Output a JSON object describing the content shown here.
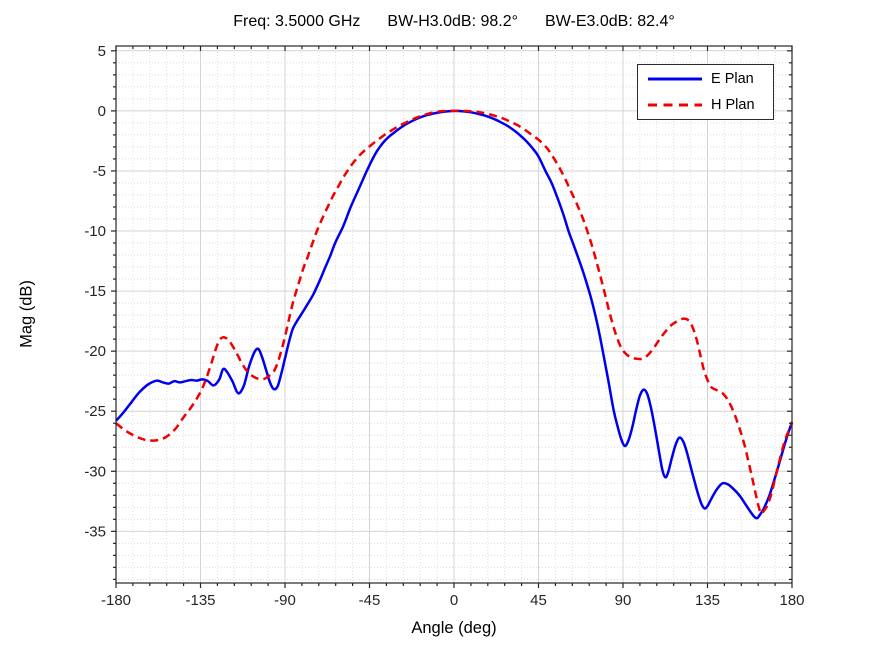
{
  "chart_data": {
    "type": "line",
    "title_parts": [
      "Freq: 3.5000 GHz",
      "BW-H3.0dB: 98.2°",
      "BW-E3.0dB: 82.4°"
    ],
    "xlabel": "Angle (deg)",
    "ylabel": "Mag (dB)",
    "xlim": [
      -180,
      180
    ],
    "ylim_display": [
      -39.3,
      5.4
    ],
    "grid": true,
    "minor_grid": true,
    "minor_x_step": 9,
    "minor_y_step": 1,
    "xticks": {
      "values": [
        -180,
        -135,
        -90,
        -45,
        0,
        45,
        90,
        135,
        180
      ],
      "labels": [
        "-180",
        "-135",
        "-90",
        "-45",
        "0",
        "45",
        "90",
        "135",
        "180"
      ]
    },
    "yticks": {
      "values": [
        5,
        0,
        -5,
        -10,
        -15,
        -20,
        -25,
        -30,
        -35
      ],
      "labels": [
        "5",
        "0",
        "-5",
        "-10",
        "-15",
        "-20",
        "-25",
        "-30",
        "-35"
      ]
    },
    "legend": {
      "position": "top-right",
      "entries": [
        "E Plan",
        "H Plan"
      ]
    },
    "series": [
      {
        "name": "E Plan",
        "color": "#0000F0",
        "style": "solid",
        "points": [
          [
            -180,
            -25.8
          ],
          [
            -176,
            -25.1
          ],
          [
            -172,
            -24.3
          ],
          [
            -168,
            -23.5
          ],
          [
            -164,
            -22.9
          ],
          [
            -161,
            -22.6
          ],
          [
            -158,
            -22.45
          ],
          [
            -155,
            -22.6
          ],
          [
            -152,
            -22.7
          ],
          [
            -149,
            -22.5
          ],
          [
            -146,
            -22.6
          ],
          [
            -143,
            -22.5
          ],
          [
            -140,
            -22.4
          ],
          [
            -137,
            -22.45
          ],
          [
            -134,
            -22.35
          ],
          [
            -131,
            -22.5
          ],
          [
            -128,
            -22.85
          ],
          [
            -125,
            -22.35
          ],
          [
            -123,
            -21.5
          ],
          [
            -121,
            -21.7
          ],
          [
            -118,
            -22.5
          ],
          [
            -115,
            -23.5
          ],
          [
            -112,
            -22.9
          ],
          [
            -109,
            -21.2
          ],
          [
            -106,
            -20.0
          ],
          [
            -104,
            -19.85
          ],
          [
            -102,
            -20.6
          ],
          [
            -100,
            -21.6
          ],
          [
            -98,
            -22.6
          ],
          [
            -96,
            -23.15
          ],
          [
            -94,
            -22.95
          ],
          [
            -92,
            -21.9
          ],
          [
            -90,
            -20.6
          ],
          [
            -88,
            -19.3
          ],
          [
            -86,
            -18.2
          ],
          [
            -84,
            -17.6
          ],
          [
            -82,
            -17.1
          ],
          [
            -80,
            -16.6
          ],
          [
            -78,
            -16.1
          ],
          [
            -75,
            -15.3
          ],
          [
            -72,
            -14.3
          ],
          [
            -69,
            -13.2
          ],
          [
            -66,
            -12.1
          ],
          [
            -63,
            -10.9
          ],
          [
            -59,
            -9.6
          ],
          [
            -55,
            -8.0
          ],
          [
            -51,
            -6.6
          ],
          [
            -47,
            -5.2
          ],
          [
            -44,
            -4.2
          ],
          [
            -41,
            -3.35
          ],
          [
            -38,
            -2.7
          ],
          [
            -35,
            -2.2
          ],
          [
            -31,
            -1.7
          ],
          [
            -27,
            -1.25
          ],
          [
            -23,
            -0.9
          ],
          [
            -19,
            -0.6
          ],
          [
            -15,
            -0.38
          ],
          [
            -11,
            -0.22
          ],
          [
            -7,
            -0.1
          ],
          [
            -3,
            -0.03
          ],
          [
            1,
            0
          ],
          [
            5,
            -0.04
          ],
          [
            9,
            -0.12
          ],
          [
            13,
            -0.25
          ],
          [
            17,
            -0.42
          ],
          [
            21,
            -0.65
          ],
          [
            25,
            -0.95
          ],
          [
            29,
            -1.3
          ],
          [
            33,
            -1.75
          ],
          [
            36,
            -2.15
          ],
          [
            39,
            -2.6
          ],
          [
            42,
            -3.15
          ],
          [
            45,
            -3.8
          ],
          [
            49,
            -5.1
          ],
          [
            52,
            -6.0
          ],
          [
            55,
            -7.2
          ],
          [
            58,
            -8.5
          ],
          [
            61,
            -10.0
          ],
          [
            64,
            -11.3
          ],
          [
            67,
            -12.6
          ],
          [
            70,
            -14.0
          ],
          [
            73,
            -15.6
          ],
          [
            76,
            -17.5
          ],
          [
            79,
            -19.8
          ],
          [
            82,
            -22.3
          ],
          [
            85,
            -24.9
          ],
          [
            87,
            -26.2
          ],
          [
            89,
            -27.3
          ],
          [
            91,
            -27.9
          ],
          [
            93,
            -27.4
          ],
          [
            95,
            -26.3
          ],
          [
            97,
            -24.9
          ],
          [
            99,
            -23.7
          ],
          [
            101,
            -23.2
          ],
          [
            103,
            -23.6
          ],
          [
            105,
            -24.8
          ],
          [
            107,
            -26.4
          ],
          [
            109,
            -28.2
          ],
          [
            111,
            -29.9
          ],
          [
            112.5,
            -30.5
          ],
          [
            114,
            -30.1
          ],
          [
            116,
            -28.9
          ],
          [
            118,
            -27.8
          ],
          [
            120,
            -27.2
          ],
          [
            122,
            -27.5
          ],
          [
            124,
            -28.4
          ],
          [
            127,
            -30.2
          ],
          [
            130,
            -31.9
          ],
          [
            132,
            -32.8
          ],
          [
            133.5,
            -33.1
          ],
          [
            135,
            -32.9
          ],
          [
            137,
            -32.3
          ],
          [
            140,
            -31.5
          ],
          [
            143,
            -31.0
          ],
          [
            146,
            -31.1
          ],
          [
            149,
            -31.5
          ],
          [
            152,
            -32.0
          ],
          [
            155,
            -32.7
          ],
          [
            158,
            -33.4
          ],
          [
            160,
            -33.8
          ],
          [
            161.5,
            -33.9
          ],
          [
            163,
            -33.6
          ],
          [
            165,
            -33.1
          ],
          [
            168,
            -32.0
          ],
          [
            171,
            -30.5
          ],
          [
            174,
            -28.9
          ],
          [
            177,
            -27.3
          ],
          [
            180,
            -25.9
          ]
        ]
      },
      {
        "name": "H Plan",
        "color": "#F00000",
        "style": "dashed",
        "points": [
          [
            -180,
            -26.0
          ],
          [
            -176,
            -26.5
          ],
          [
            -172,
            -26.9
          ],
          [
            -168,
            -27.2
          ],
          [
            -164,
            -27.4
          ],
          [
            -160,
            -27.45
          ],
          [
            -156,
            -27.35
          ],
          [
            -152,
            -27.0
          ],
          [
            -148,
            -26.4
          ],
          [
            -144,
            -25.5
          ],
          [
            -141,
            -24.9
          ],
          [
            -138,
            -24.2
          ],
          [
            -135,
            -23.4
          ],
          [
            -132,
            -22.3
          ],
          [
            -129,
            -20.9
          ],
          [
            -127,
            -19.9
          ],
          [
            -125,
            -19.1
          ],
          [
            -123,
            -18.85
          ],
          [
            -121,
            -18.95
          ],
          [
            -119,
            -19.3
          ],
          [
            -116,
            -20.1
          ],
          [
            -113,
            -21.0
          ],
          [
            -110,
            -21.7
          ],
          [
            -107,
            -22.1
          ],
          [
            -104,
            -22.3
          ],
          [
            -101,
            -22.3
          ],
          [
            -98,
            -22.0
          ],
          [
            -96,
            -21.7
          ],
          [
            -94,
            -21.0
          ],
          [
            -92,
            -20.0
          ],
          [
            -90,
            -18.8
          ],
          [
            -88,
            -17.4
          ],
          [
            -86,
            -16.1
          ],
          [
            -84,
            -15.0
          ],
          [
            -82,
            -14.0
          ],
          [
            -80,
            -13.0
          ],
          [
            -78,
            -12.2
          ],
          [
            -76,
            -11.3
          ],
          [
            -73,
            -10.0
          ],
          [
            -70,
            -8.9
          ],
          [
            -67,
            -7.9
          ],
          [
            -64,
            -6.95
          ],
          [
            -61,
            -6.1
          ],
          [
            -58,
            -5.3
          ],
          [
            -55,
            -4.6
          ],
          [
            -52,
            -4.0
          ],
          [
            -49,
            -3.5
          ],
          [
            -46,
            -3.1
          ],
          [
            -43,
            -2.7
          ],
          [
            -40,
            -2.35
          ],
          [
            -37,
            -2.0
          ],
          [
            -34,
            -1.7
          ],
          [
            -30,
            -1.32
          ],
          [
            -26,
            -1.0
          ],
          [
            -22,
            -0.7
          ],
          [
            -18,
            -0.45
          ],
          [
            -14,
            -0.25
          ],
          [
            -10,
            -0.1
          ],
          [
            -6,
            -0.02
          ],
          [
            -2,
            0
          ],
          [
            2,
            0
          ],
          [
            6,
            -0.01
          ],
          [
            10,
            -0.05
          ],
          [
            14,
            -0.12
          ],
          [
            18,
            -0.25
          ],
          [
            22,
            -0.42
          ],
          [
            26,
            -0.63
          ],
          [
            30,
            -0.9
          ],
          [
            34,
            -1.2
          ],
          [
            38,
            -1.6
          ],
          [
            41,
            -1.95
          ],
          [
            45,
            -2.4
          ],
          [
            48,
            -2.85
          ],
          [
            50,
            -3.2
          ],
          [
            53,
            -3.9
          ],
          [
            56,
            -4.7
          ],
          [
            59,
            -5.6
          ],
          [
            62,
            -6.6
          ],
          [
            65,
            -7.6
          ],
          [
            68,
            -8.7
          ],
          [
            71,
            -10.0
          ],
          [
            74,
            -11.5
          ],
          [
            77,
            -13.2
          ],
          [
            80,
            -15.0
          ],
          [
            83,
            -16.9
          ],
          [
            86,
            -18.5
          ],
          [
            89,
            -19.7
          ],
          [
            92,
            -20.3
          ],
          [
            95,
            -20.55
          ],
          [
            98,
            -20.65
          ],
          [
            101,
            -20.6
          ],
          [
            104,
            -20.2
          ],
          [
            107,
            -19.6
          ],
          [
            110,
            -18.9
          ],
          [
            113,
            -18.3
          ],
          [
            116,
            -17.8
          ],
          [
            119,
            -17.5
          ],
          [
            122,
            -17.3
          ],
          [
            125,
            -17.45
          ],
          [
            127,
            -18.0
          ],
          [
            129,
            -18.9
          ],
          [
            131,
            -20.2
          ],
          [
            133,
            -21.5
          ],
          [
            135,
            -22.4
          ],
          [
            137,
            -23.0
          ],
          [
            140,
            -23.25
          ],
          [
            143,
            -23.5
          ],
          [
            146,
            -24.1
          ],
          [
            149,
            -25.1
          ],
          [
            152,
            -26.4
          ],
          [
            155,
            -28.0
          ],
          [
            158,
            -30.0
          ],
          [
            160,
            -31.4
          ],
          [
            162,
            -32.8
          ],
          [
            163.5,
            -33.5
          ],
          [
            165,
            -33.3
          ],
          [
            167,
            -32.8
          ],
          [
            169,
            -31.9
          ],
          [
            171,
            -30.6
          ],
          [
            173,
            -29.3
          ],
          [
            175,
            -28.1
          ],
          [
            177,
            -27.1
          ],
          [
            180,
            -26.0
          ]
        ]
      }
    ]
  }
}
